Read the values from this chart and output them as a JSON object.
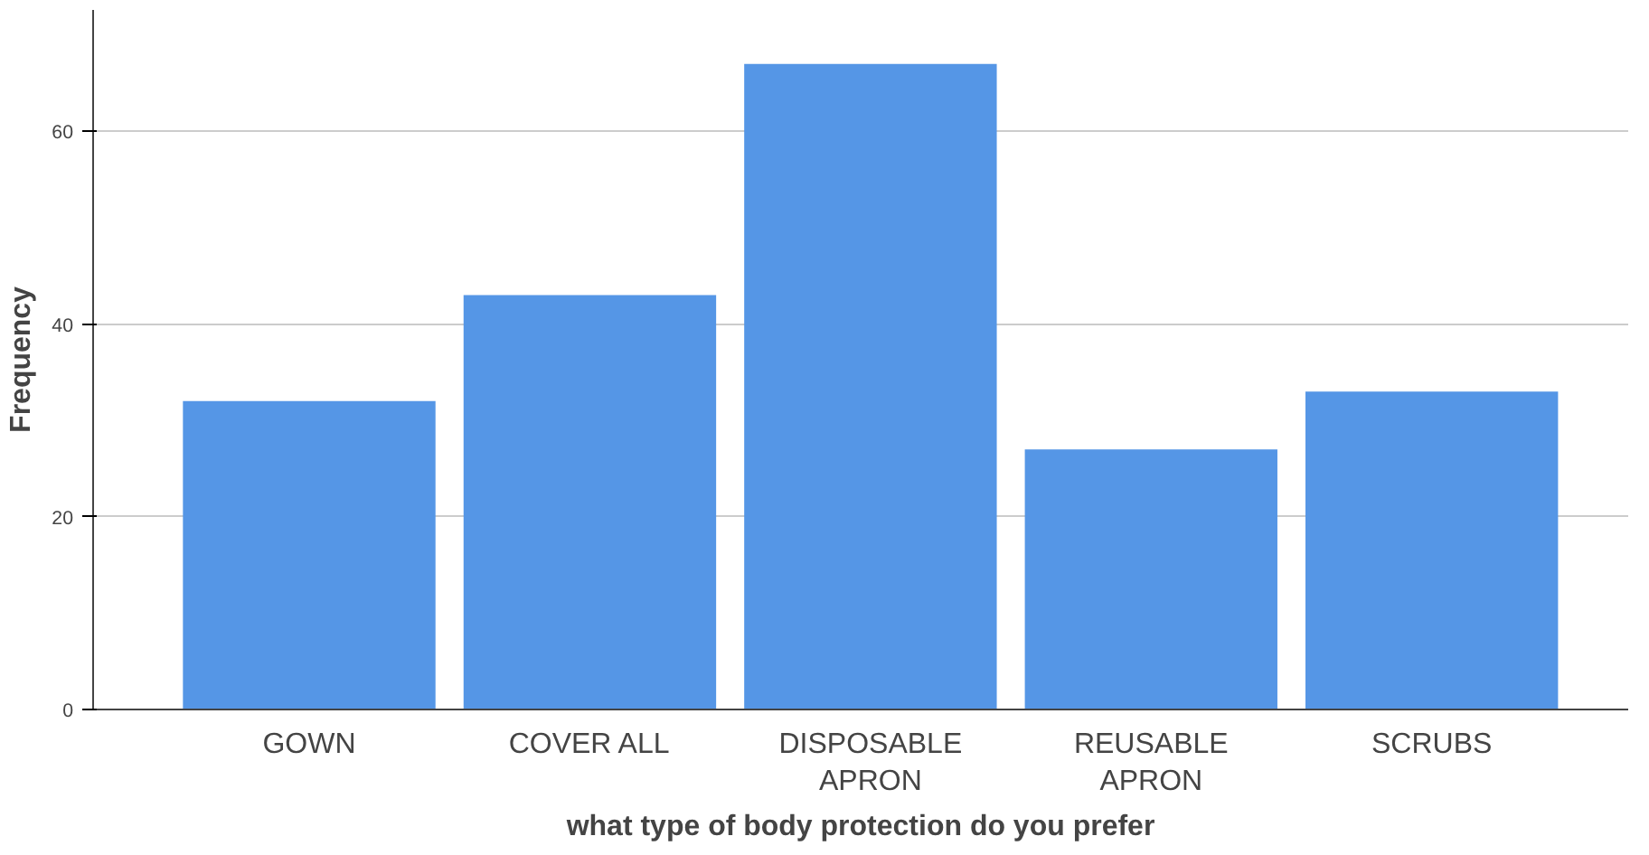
{
  "chart_data": {
    "type": "bar",
    "xlabel": "what type of body protection do you prefer",
    "ylabel": "Frequency",
    "categories": [
      "GOWN",
      "COVER ALL",
      "DISPOSABLE\nAPRON",
      "REUSABLE\nAPRON",
      "SCRUBS"
    ],
    "values": [
      32,
      43,
      67,
      27,
      33
    ],
    "color": "#5596e6",
    "ylim": [
      0,
      72.6
    ],
    "yticks": [
      0,
      20,
      40,
      60
    ],
    "grid": "y"
  }
}
